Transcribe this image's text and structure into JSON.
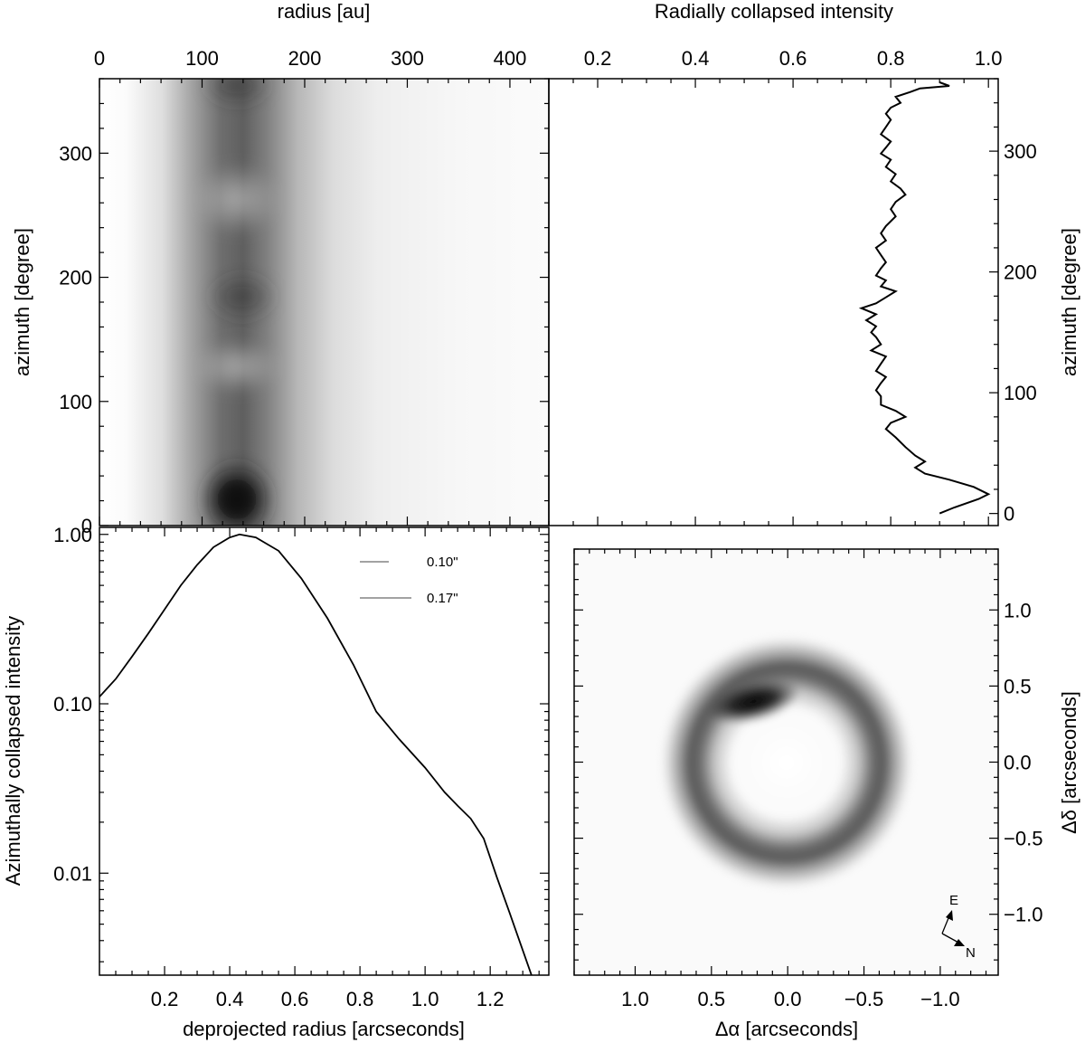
{
  "chart_data": [
    {
      "id": "polar_map",
      "type": "heatmap",
      "title": "",
      "top_axis_label": "radius [au]",
      "top_ticks": [
        "0",
        "100",
        "200",
        "300",
        "400"
      ],
      "top_xlim": [
        0,
        430
      ],
      "ylabel": "azimuth [degree]",
      "y_ticks": [
        "0",
        "100",
        "200",
        "300"
      ],
      "ylim": [
        0,
        360
      ],
      "colormap": "grey (white=low, black=high)",
      "features": [
        {
          "desc": "dark ring band",
          "radius_au_center": 140,
          "azimuth_range": [
            0,
            360
          ]
        },
        {
          "desc": "brightest peak",
          "radius_au": 140,
          "azimuth": 15
        },
        {
          "desc": "secondary peak",
          "radius_au": 140,
          "azimuth": 185
        },
        {
          "desc": "fainter segment",
          "radius_au": 140,
          "azimuth": 120
        },
        {
          "desc": "bright top edge",
          "radius_au": 140,
          "azimuth": 355
        }
      ]
    },
    {
      "id": "azimuthal_profile",
      "type": "line",
      "top_axis_label": "Radially collapsed intensity",
      "x_ticks": [
        "0.2",
        "0.4",
        "0.6",
        "0.8",
        "1.0"
      ],
      "xlim": [
        0.1,
        1.02
      ],
      "ylabel": "azimuth [degree]",
      "y_ticks": [
        "0",
        "100",
        "200",
        "300"
      ],
      "ylim": [
        -10,
        360
      ],
      "points": [
        [
          0.9,
          0
        ],
        [
          0.93,
          5
        ],
        [
          0.98,
          12
        ],
        [
          1.0,
          16
        ],
        [
          0.97,
          22
        ],
        [
          0.92,
          28
        ],
        [
          0.87,
          33
        ],
        [
          0.85,
          38
        ],
        [
          0.87,
          43
        ],
        [
          0.85,
          48
        ],
        [
          0.83,
          55
        ],
        [
          0.81,
          63
        ],
        [
          0.79,
          70
        ],
        [
          0.8,
          75
        ],
        [
          0.83,
          80
        ],
        [
          0.81,
          85
        ],
        [
          0.78,
          90
        ],
        [
          0.78,
          97
        ],
        [
          0.77,
          102
        ],
        [
          0.78,
          108
        ],
        [
          0.79,
          113
        ],
        [
          0.77,
          118
        ],
        [
          0.78,
          124
        ],
        [
          0.79,
          130
        ],
        [
          0.76,
          135
        ],
        [
          0.78,
          140
        ],
        [
          0.77,
          146
        ],
        [
          0.76,
          150
        ],
        [
          0.77,
          155
        ],
        [
          0.75,
          160
        ],
        [
          0.77,
          165
        ],
        [
          0.74,
          170
        ],
        [
          0.77,
          174
        ],
        [
          0.79,
          179
        ],
        [
          0.81,
          184
        ],
        [
          0.78,
          188
        ],
        [
          0.79,
          193
        ],
        [
          0.77,
          197
        ],
        [
          0.78,
          203
        ],
        [
          0.79,
          208
        ],
        [
          0.78,
          214
        ],
        [
          0.77,
          220
        ],
        [
          0.79,
          226
        ],
        [
          0.78,
          232
        ],
        [
          0.79,
          238
        ],
        [
          0.81,
          246
        ],
        [
          0.8,
          252
        ],
        [
          0.81,
          258
        ],
        [
          0.83,
          264
        ],
        [
          0.82,
          269
        ],
        [
          0.8,
          275
        ],
        [
          0.81,
          281
        ],
        [
          0.79,
          287
        ],
        [
          0.8,
          293
        ],
        [
          0.78,
          298
        ],
        [
          0.79,
          303
        ],
        [
          0.8,
          308
        ],
        [
          0.78,
          314
        ],
        [
          0.79,
          320
        ],
        [
          0.8,
          326
        ],
        [
          0.79,
          331
        ],
        [
          0.8,
          336
        ],
        [
          0.82,
          340
        ],
        [
          0.81,
          345
        ],
        [
          0.84,
          349
        ],
        [
          0.86,
          352
        ],
        [
          0.92,
          354
        ],
        [
          0.9,
          357
        ]
      ]
    },
    {
      "id": "radial_profile",
      "type": "line",
      "xlabel": "deprojected radius [arcseconds]",
      "x_ticks": [
        "0.2",
        "0.4",
        "0.6",
        "0.8",
        "1.0",
        "1.2"
      ],
      "xlim": [
        0.0,
        1.38
      ],
      "ylabel": "Azimuthally collapsed intensity",
      "y_ticks": [
        "0.01",
        "0.10",
        "1.00"
      ],
      "ylim": [
        0.0025,
        1.1
      ],
      "yscale": "log",
      "legend": [
        {
          "text": "0.10\""
        },
        {
          "text": "0.17\""
        }
      ],
      "legend_position": "top-right",
      "points": [
        [
          0.0,
          0.11
        ],
        [
          0.05,
          0.14
        ],
        [
          0.1,
          0.19
        ],
        [
          0.15,
          0.26
        ],
        [
          0.2,
          0.36
        ],
        [
          0.25,
          0.5
        ],
        [
          0.3,
          0.66
        ],
        [
          0.35,
          0.84
        ],
        [
          0.4,
          0.96
        ],
        [
          0.43,
          1.0
        ],
        [
          0.48,
          0.96
        ],
        [
          0.55,
          0.8
        ],
        [
          0.62,
          0.55
        ],
        [
          0.7,
          0.32
        ],
        [
          0.78,
          0.17
        ],
        [
          0.85,
          0.09
        ],
        [
          0.92,
          0.062
        ],
        [
          1.0,
          0.042
        ],
        [
          1.06,
          0.03
        ],
        [
          1.1,
          0.025
        ],
        [
          1.14,
          0.021
        ],
        [
          1.18,
          0.016
        ],
        [
          1.22,
          0.0095
        ],
        [
          1.26,
          0.0058
        ],
        [
          1.3,
          0.0035
        ],
        [
          1.33,
          0.0024
        ]
      ]
    },
    {
      "id": "disk_image",
      "type": "heatmap",
      "xlabel": "Δα  [arcseconds]",
      "x_ticks": [
        "1.0",
        "0.5",
        "0.0",
        "−0.5",
        "−1.0"
      ],
      "xlim": [
        1.4,
        -1.38
      ],
      "ylabel": "Δδ  [arcseconds]",
      "y_ticks": [
        "−1.0",
        "−0.5",
        "0.0",
        "0.5",
        "1.0"
      ],
      "ylim": [
        -1.4,
        1.4
      ],
      "colormap": "grey (white=low, black=high)",
      "ring": {
        "center": [
          0.0,
          -0.02
        ],
        "radius_arcsec": 0.43
      },
      "bright_spot": {
        "dalpha": 0.15,
        "ddelta": 0.38
      },
      "compass": {
        "east": "E",
        "north": "N"
      }
    }
  ]
}
